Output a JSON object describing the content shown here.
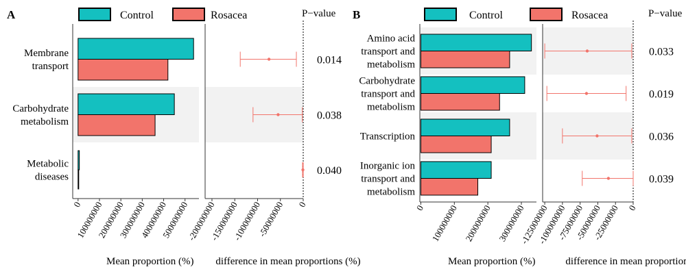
{
  "chart_data": [
    {
      "panel_label": "A",
      "type": "bar",
      "categories": [
        "Membrane transport",
        "Carbohydrate metabolism",
        "Metabolic diseases"
      ],
      "category_lines": [
        [
          "Membrane",
          "transport"
        ],
        [
          "Carbohydrate",
          "metabolism"
        ],
        [
          "Metabolic",
          "diseases"
        ]
      ],
      "series": [
        {
          "name": "Control",
          "color": "#14c0c0",
          "values": [
            540000000,
            450000000,
            6000000
          ]
        },
        {
          "name": "Rosacea",
          "color": "#f2746b",
          "values": [
            420000000,
            360000000,
            2000000
          ]
        }
      ],
      "bar_xlim": [
        -25000000,
        565000000
      ],
      "bar_ticks": [
        0,
        100000000,
        200000000,
        300000000,
        400000000,
        500000000
      ],
      "bar_tick_labels": [
        "0e + 00",
        "1e + 08",
        "2e + 08",
        "3e + 08",
        "4e + 08",
        "5e + 08"
      ],
      "xlabel": "Mean proportion (%)",
      "difference": {
        "estimates": [
          -75000000,
          -55000000,
          -700000
        ],
        "ci_low": [
          -138000000,
          -110000000,
          -1500000
        ],
        "ci_high": [
          -15000000,
          -2000000,
          100000
        ],
        "xlim": [
          -215000000,
          0
        ],
        "ticks": [
          -200000000,
          -150000000,
          -100000000,
          -50000000,
          0
        ],
        "tick_labels": [
          "−2.00e + 08",
          "−1.50e + 08",
          "−1.00e + 08",
          "−5.00e + 07",
          "0.00e + 00"
        ],
        "color": "#f2746b",
        "xlabel": "difference in mean proportions (%)"
      },
      "p_values": [
        "0.014",
        "0.038",
        "0.040"
      ],
      "p_header": "P−value",
      "shaded_rows": [
        1
      ]
    },
    {
      "panel_label": "B",
      "type": "bar",
      "categories": [
        "Amino acid transport and metabolism",
        "Carbohydrate transport and metabolism",
        "Transcription",
        "Inorganic ion transport and metabolism"
      ],
      "category_lines": [
        [
          "Amino acid",
          "transport and",
          "metabolism"
        ],
        [
          "Carbohydrate",
          "transport and",
          "metabolism"
        ],
        [
          "Transcription"
        ],
        [
          "Inorganic ion",
          "transport and",
          "metabolism"
        ]
      ],
      "series": [
        {
          "name": "Control",
          "color": "#14c0c0",
          "values": [
            330000000,
            310000000,
            265000000,
            210000000
          ]
        },
        {
          "name": "Rosacea",
          "color": "#f2746b",
          "values": [
            265000000,
            235000000,
            210000000,
            170000000
          ]
        }
      ],
      "bar_xlim": [
        -3000000,
        345000000
      ],
      "bar_ticks": [
        0,
        100000000,
        200000000,
        300000000
      ],
      "bar_tick_labels": [
        "0e + 00",
        "1e + 08",
        "2e + 08",
        "3e + 08"
      ],
      "xlabel": "Mean proportion (%)",
      "difference": {
        "estimates": [
          -65000000,
          -66000000,
          -51000000,
          -35000000
        ],
        "ci_low": [
          -125000000,
          -122000000,
          -100000000,
          -72000000
        ],
        "ci_high": [
          -2000000,
          -10000000,
          -2000000,
          0
        ],
        "xlim": [
          -128000000,
          0
        ],
        "ticks": [
          -125000000,
          -100000000,
          -75000000,
          -50000000,
          -25000000,
          0
        ],
        "tick_labels": [
          "−1.25e + 08",
          "−1.00e + 08",
          "−7.50e + 07",
          "−5.00e + 07",
          "−2.50e + 07",
          "0.00e + 00"
        ],
        "color": "#f2746b",
        "xlabel": "difference in mean proportions (%)"
      },
      "p_values": [
        "0.033",
        "0.019",
        "0.036",
        "0.039"
      ],
      "p_header": "P−value",
      "shaded_rows": [
        0,
        2
      ]
    }
  ]
}
